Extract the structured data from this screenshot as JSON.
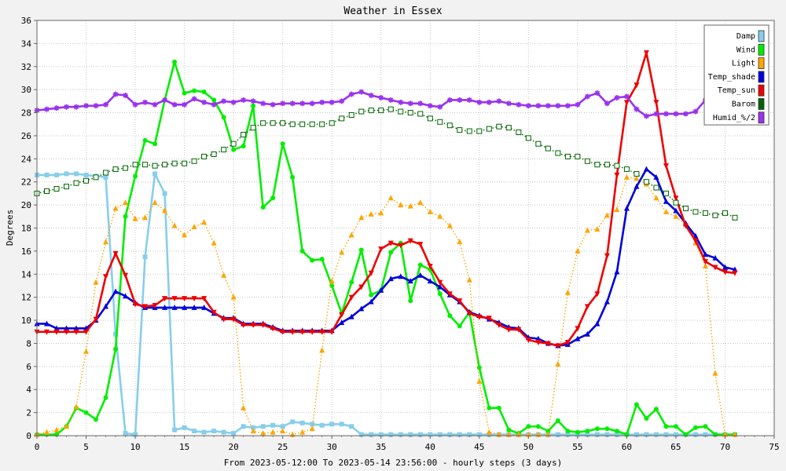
{
  "chart_data": {
    "type": "line",
    "title": "Weather in Essex",
    "xlabel": "From 2023-05-12:00 To 2023-05-14 23:56:00 - hourly steps (3 days)",
    "ylabel": "Degrees",
    "xlim": [
      0,
      75
    ],
    "ylim": [
      0,
      36
    ],
    "x_ticks": [
      "0",
      "5",
      "10",
      "15",
      "20",
      "25",
      "30",
      "35",
      "40",
      "45",
      "50",
      "55",
      "60",
      "65",
      "70",
      "75"
    ],
    "y_ticks": [
      "0",
      "2",
      "4",
      "6",
      "8",
      "10",
      "12",
      "14",
      "16",
      "18",
      "20",
      "22",
      "24",
      "26",
      "28",
      "30",
      "32",
      "34",
      "36"
    ],
    "grid": true,
    "legend_position": "top-right",
    "series": [
      {
        "name": "Damp",
        "color": "#87ceeb",
        "style": "solid",
        "marker": "square",
        "values": [
          22.6,
          22.6,
          22.6,
          22.7,
          22.7,
          22.6,
          22.5,
          22.4,
          8.8,
          0.2,
          0.1,
          15.5,
          22.7,
          21.0,
          0.5,
          0.7,
          0.4,
          0.3,
          0.4,
          0.3,
          0.2,
          0.8,
          0.7,
          0.8,
          0.9,
          0.8,
          1.2,
          1.1,
          1.0,
          0.9,
          1.0,
          1.0,
          0.8,
          0.1,
          0.1,
          0.1,
          0.1,
          0.1,
          0.1,
          0.1,
          0.1,
          0.1,
          0.1,
          0.1,
          0.1,
          0.1,
          0.1,
          0.1,
          0.1,
          0.1,
          0.1,
          0.1,
          0.1,
          0.1,
          0.1,
          0.1,
          0.1,
          0.1,
          0.1,
          0.1,
          0.1,
          0.1,
          0.1,
          0.1,
          0.1,
          0.1,
          0.1,
          0.1,
          0.1,
          0.1,
          0.1,
          0.1
        ]
      },
      {
        "name": "Wind",
        "color": "#00ee00",
        "style": "solid",
        "marker": "circle",
        "values": [
          0.1,
          0.1,
          0.1,
          0.8,
          2.4,
          2.0,
          1.4,
          3.3,
          7.5,
          19.0,
          22.5,
          25.6,
          25.3,
          29.1,
          32.4,
          29.7,
          29.9,
          29.8,
          29.1,
          27.6,
          24.8,
          25.1,
          28.6,
          19.8,
          20.6,
          25.3,
          22.4,
          16.0,
          15.2,
          15.3,
          13.0,
          10.6,
          13.3,
          16.1,
          12.2,
          12.6,
          15.9,
          16.7,
          11.7,
          14.8,
          14.4,
          12.3,
          10.4,
          9.5,
          10.7,
          5.9,
          2.4,
          2.4,
          0.5,
          0.2,
          0.8,
          0.8,
          0.4,
          1.3,
          0.4,
          0.3,
          0.4,
          0.6,
          0.6,
          0.4,
          0.1,
          2.7,
          1.5,
          2.3,
          0.8,
          0.8,
          0.1,
          0.7,
          0.8,
          0.1,
          0.1,
          0.1
        ]
      },
      {
        "name": "Light",
        "color": "#ffa500",
        "style": "dotted",
        "marker": "triangle-up",
        "values": [
          0.1,
          0.3,
          0.5,
          0.8,
          2.5,
          7.3,
          13.3,
          16.8,
          19.7,
          20.2,
          18.8,
          18.9,
          20.2,
          19.5,
          18.2,
          17.4,
          18.1,
          18.5,
          16.7,
          13.9,
          12.0,
          2.4,
          0.4,
          0.2,
          0.3,
          0.4,
          0.1,
          0.3,
          0.6,
          7.4,
          13.4,
          15.9,
          17.4,
          18.9,
          19.2,
          19.3,
          20.6,
          20.0,
          19.9,
          20.2,
          19.4,
          19.0,
          18.2,
          16.8,
          13.5,
          4.7,
          0.3,
          0.1,
          0.1,
          0.1,
          0.1,
          0.1,
          0.1,
          6.2,
          12.4,
          16.0,
          17.8,
          17.9,
          19.1,
          19.6,
          22.4,
          22.3,
          21.8,
          20.6,
          19.4,
          19.0,
          18.3,
          16.7,
          14.7,
          5.4,
          0.1,
          0.1
        ]
      },
      {
        "name": "Temp_shade",
        "color": "#0000dd",
        "style": "solid",
        "marker": "triangle-up",
        "values": [
          9.7,
          9.7,
          9.3,
          9.3,
          9.3,
          9.3,
          10.0,
          11.2,
          12.5,
          12.1,
          11.5,
          11.1,
          11.1,
          11.1,
          11.1,
          11.1,
          11.1,
          11.1,
          10.6,
          10.2,
          10.2,
          9.7,
          9.7,
          9.7,
          9.4,
          9.1,
          9.1,
          9.1,
          9.1,
          9.1,
          9.1,
          9.8,
          10.3,
          11.0,
          11.6,
          12.6,
          13.6,
          13.8,
          13.4,
          13.9,
          13.4,
          12.9,
          12.2,
          11.6,
          10.7,
          10.4,
          10.1,
          9.8,
          9.4,
          9.3,
          8.5,
          8.4,
          8.0,
          7.8,
          7.9,
          8.4,
          8.8,
          9.7,
          11.6,
          14.2,
          19.7,
          21.6,
          23.1,
          22.4,
          20.3,
          19.5,
          18.4,
          17.3,
          15.7,
          15.4,
          14.6,
          14.4
        ]
      },
      {
        "name": "Temp_sun",
        "color": "#ee0000",
        "style": "solid",
        "marker": "triangle-down",
        "values": [
          9.0,
          9.0,
          9.0,
          9.0,
          9.0,
          9.0,
          10.1,
          13.8,
          15.8,
          13.9,
          11.4,
          11.2,
          11.3,
          11.9,
          11.9,
          11.9,
          11.9,
          11.9,
          10.7,
          10.1,
          10.1,
          9.6,
          9.6,
          9.6,
          9.3,
          9.0,
          9.0,
          9.0,
          9.0,
          9.0,
          9.0,
          10.5,
          12.0,
          12.9,
          14.1,
          16.2,
          16.7,
          16.5,
          16.9,
          16.6,
          14.7,
          13.3,
          12.3,
          11.7,
          10.6,
          10.3,
          10.2,
          9.6,
          9.2,
          9.2,
          8.3,
          8.1,
          8.0,
          7.8,
          8.1,
          9.3,
          11.2,
          12.3,
          15.6,
          22.6,
          28.9,
          30.4,
          33.2,
          28.9,
          23.4,
          20.6,
          18.2,
          16.9,
          15.1,
          14.6,
          14.2,
          14.1
        ]
      },
      {
        "name": "Barom",
        "color": "#006400",
        "style": "dotted",
        "marker": "open-square",
        "values": [
          21.0,
          21.2,
          21.4,
          21.6,
          21.9,
          22.1,
          22.4,
          22.8,
          23.1,
          23.2,
          23.5,
          23.5,
          23.4,
          23.5,
          23.6,
          23.6,
          23.8,
          24.2,
          24.4,
          24.8,
          25.3,
          26.1,
          26.7,
          27.1,
          27.1,
          27.1,
          27.0,
          27.0,
          27.0,
          27.0,
          27.1,
          27.5,
          27.8,
          28.1,
          28.2,
          28.2,
          28.3,
          28.1,
          28.0,
          27.9,
          27.5,
          27.2,
          26.9,
          26.5,
          26.4,
          26.4,
          26.6,
          26.8,
          26.7,
          26.3,
          25.8,
          25.3,
          24.9,
          24.5,
          24.2,
          24.2,
          23.8,
          23.5,
          23.5,
          23.4,
          23.1,
          22.7,
          22.0,
          21.5,
          21.0,
          20.2,
          19.7,
          19.4,
          19.3,
          19.1,
          19.3,
          18.9
        ]
      },
      {
        "name": "Humid_%/2",
        "color": "#9932ee",
        "style": "solid",
        "marker": "star",
        "values": [
          28.2,
          28.3,
          28.4,
          28.5,
          28.5,
          28.6,
          28.6,
          28.7,
          29.6,
          29.5,
          28.7,
          28.9,
          28.7,
          29.1,
          28.7,
          28.7,
          29.2,
          28.9,
          28.7,
          29.0,
          28.9,
          29.1,
          29.0,
          28.8,
          28.7,
          28.8,
          28.8,
          28.8,
          28.8,
          28.9,
          28.9,
          29.0,
          29.6,
          29.8,
          29.5,
          29.3,
          29.1,
          28.9,
          28.8,
          28.8,
          28.6,
          28.5,
          29.1,
          29.1,
          29.1,
          28.9,
          28.9,
          29.0,
          28.8,
          28.7,
          28.6,
          28.6,
          28.6,
          28.6,
          28.6,
          28.7,
          29.4,
          29.7,
          28.8,
          29.3,
          29.4,
          28.3,
          27.7,
          27.9,
          27.9,
          27.9,
          27.9,
          28.1,
          29.1,
          28.8,
          29.0,
          29.1
        ]
      }
    ]
  }
}
